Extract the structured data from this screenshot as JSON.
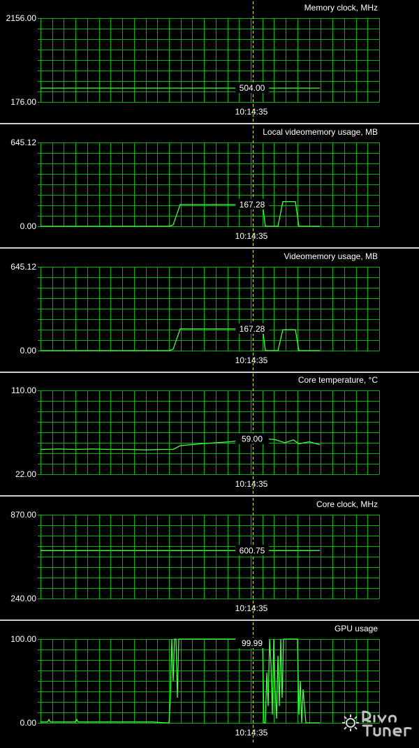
{
  "app": {
    "name": "RivaTuner"
  },
  "chart_data": [
    {
      "type": "line",
      "title": "Memory clock, MHz",
      "ylim": [
        176.0,
        2156.0
      ],
      "ymax_label": "2156.00",
      "ymin_label": "176.00",
      "cursor_time": "10:14:35",
      "cursor_value": "504.00",
      "x": [
        0,
        400
      ],
      "values": [
        504,
        504
      ]
    },
    {
      "type": "line",
      "title": "Local videomemory usage, MB",
      "ylim": [
        0.0,
        645.12
      ],
      "ymax_label": "645.12",
      "ymin_label": "0.00",
      "cursor_time": "10:14:35",
      "cursor_value": "167.28",
      "x": [
        0,
        185,
        190,
        200,
        300,
        318,
        322,
        340,
        347,
        365,
        370,
        400
      ],
      "values": [
        0,
        0,
        12,
        167.28,
        167.28,
        167.28,
        0,
        0,
        190,
        190,
        0,
        0
      ]
    },
    {
      "type": "line",
      "title": "Videomemory usage, MB",
      "ylim": [
        0.0,
        645.12
      ],
      "ymax_label": "645.12",
      "ymin_label": "0.00",
      "cursor_time": "10:14:35",
      "cursor_value": "167.28",
      "x": [
        0,
        185,
        190,
        200,
        300,
        318,
        322,
        340,
        347,
        365,
        370,
        400
      ],
      "values": [
        0,
        0,
        12,
        167.28,
        167.28,
        167.28,
        0,
        0,
        160,
        160,
        0,
        0
      ]
    },
    {
      "type": "line",
      "title": "Core temperature, °C",
      "ylim": [
        22.0,
        110.0
      ],
      "ymax_label": "110.00",
      "ymin_label": "22.00",
      "cursor_time": "10:14:35",
      "cursor_value": "59.00",
      "x": [
        0,
        25,
        50,
        75,
        100,
        125,
        150,
        175,
        190,
        200,
        215,
        230,
        250,
        270,
        290,
        305,
        320,
        335,
        350,
        362,
        370,
        385,
        400
      ],
      "values": [
        48,
        48.5,
        48,
        48.5,
        48,
        48,
        47.5,
        48,
        48,
        52,
        53,
        54,
        55,
        56,
        57.5,
        58.5,
        59,
        58.5,
        55,
        58,
        54,
        56,
        53
      ]
    },
    {
      "type": "line",
      "title": "Core clock, MHz",
      "ylim": [
        240.0,
        870.0
      ],
      "ymax_label": "870.00",
      "ymin_label": "240.00",
      "cursor_time": "10:14:35",
      "cursor_value": "600.75",
      "x": [
        0,
        400
      ],
      "values": [
        600.75,
        600.75
      ]
    },
    {
      "type": "line",
      "title": "GPU usage",
      "ylim": [
        0.0,
        100.0
      ],
      "ymax_label": "100.00",
      "ymin_label": "0.00",
      "cursor_time": "10:14:35",
      "cursor_value": "99.99",
      "x": [
        0,
        10,
        12,
        14,
        50,
        52,
        54,
        160,
        180,
        184,
        186,
        188,
        190,
        192,
        194,
        196,
        198,
        200,
        202,
        204,
        300,
        310,
        312,
        314,
        316,
        318,
        320,
        322,
        324,
        326,
        328,
        330,
        332,
        334,
        336,
        338,
        340,
        342,
        344,
        346,
        348,
        350,
        352,
        354,
        356,
        358,
        360,
        364,
        366,
        368,
        370,
        372,
        374,
        376,
        378,
        380,
        382,
        384,
        386,
        388,
        390,
        392,
        394,
        396,
        398,
        400
      ],
      "values": [
        1,
        1,
        4,
        1,
        1,
        4,
        1,
        1,
        0,
        0,
        30,
        100,
        50,
        99.99,
        99.99,
        30,
        100,
        99.99,
        99.99,
        99.99,
        99.99,
        99.99,
        99.99,
        99.99,
        99.99,
        99.99,
        0,
        0,
        60,
        20,
        100,
        70,
        10,
        99.99,
        40,
        5,
        80,
        20,
        99.99,
        30,
        99.99,
        99.99,
        99.99,
        99.99,
        99.99,
        99.99,
        99.99,
        99.99,
        99.99,
        99.99,
        10,
        50,
        0,
        40,
        20,
        0,
        0,
        0,
        0,
        0,
        0,
        0,
        0,
        0,
        0,
        0
      ]
    }
  ],
  "colors": {
    "background": "#000000",
    "grid": "#00b400",
    "line": "#40ff40",
    "cursor": "#e0e000",
    "text": "#ffffff",
    "divider": "#cfcfcf"
  }
}
